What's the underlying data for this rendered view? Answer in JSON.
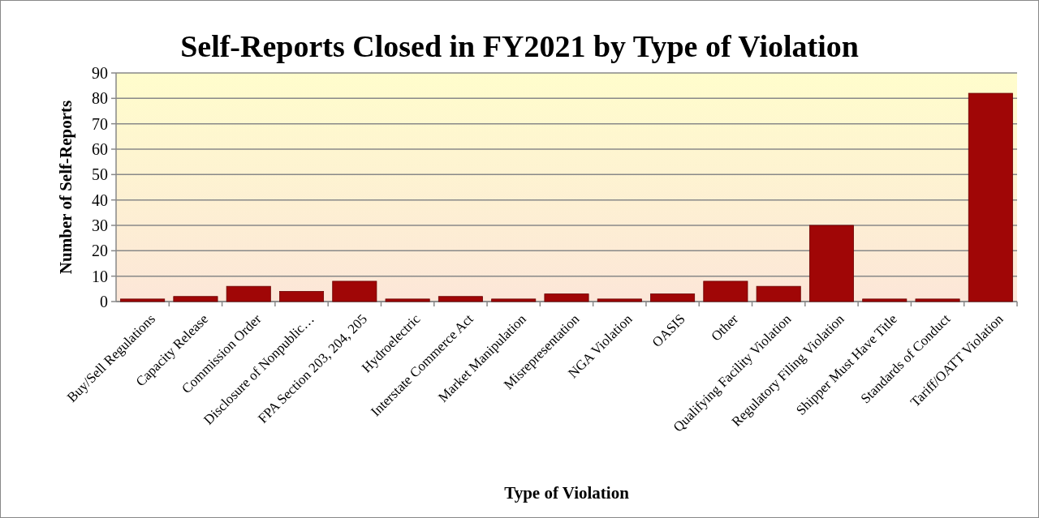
{
  "chart_data": {
    "type": "bar",
    "title": "Self-Reports Closed in FY2021 by Type of Violation",
    "xlabel": "Type of Violation",
    "ylabel": "Number of Self-Reports",
    "categories": [
      "Buy/Sell Regulations",
      "Capacity Release",
      "Commission Order",
      "Disclosure of Nonpublic…",
      "FPA Section 203, 204, 205",
      "Hydroelectric",
      "Interstate Commerce Act",
      "Market Manipulation",
      "Misrepresentation",
      "NGA Violation",
      "OASIS",
      "Other",
      "Qualifying Facility Violation",
      "Regulatory Filing Violation",
      "Shipper Must Have Title",
      "Standards of Conduct",
      "Tariff/OATT Violation"
    ],
    "values": [
      1,
      2,
      6,
      4,
      8,
      1,
      2,
      1,
      3,
      1,
      3,
      8,
      6,
      30,
      1,
      1,
      82
    ],
    "color": "#a00606",
    "ylim": [
      0,
      90
    ],
    "yticks": [
      0,
      10,
      20,
      30,
      40,
      50,
      60,
      70,
      80,
      90
    ],
    "grid": "y"
  }
}
